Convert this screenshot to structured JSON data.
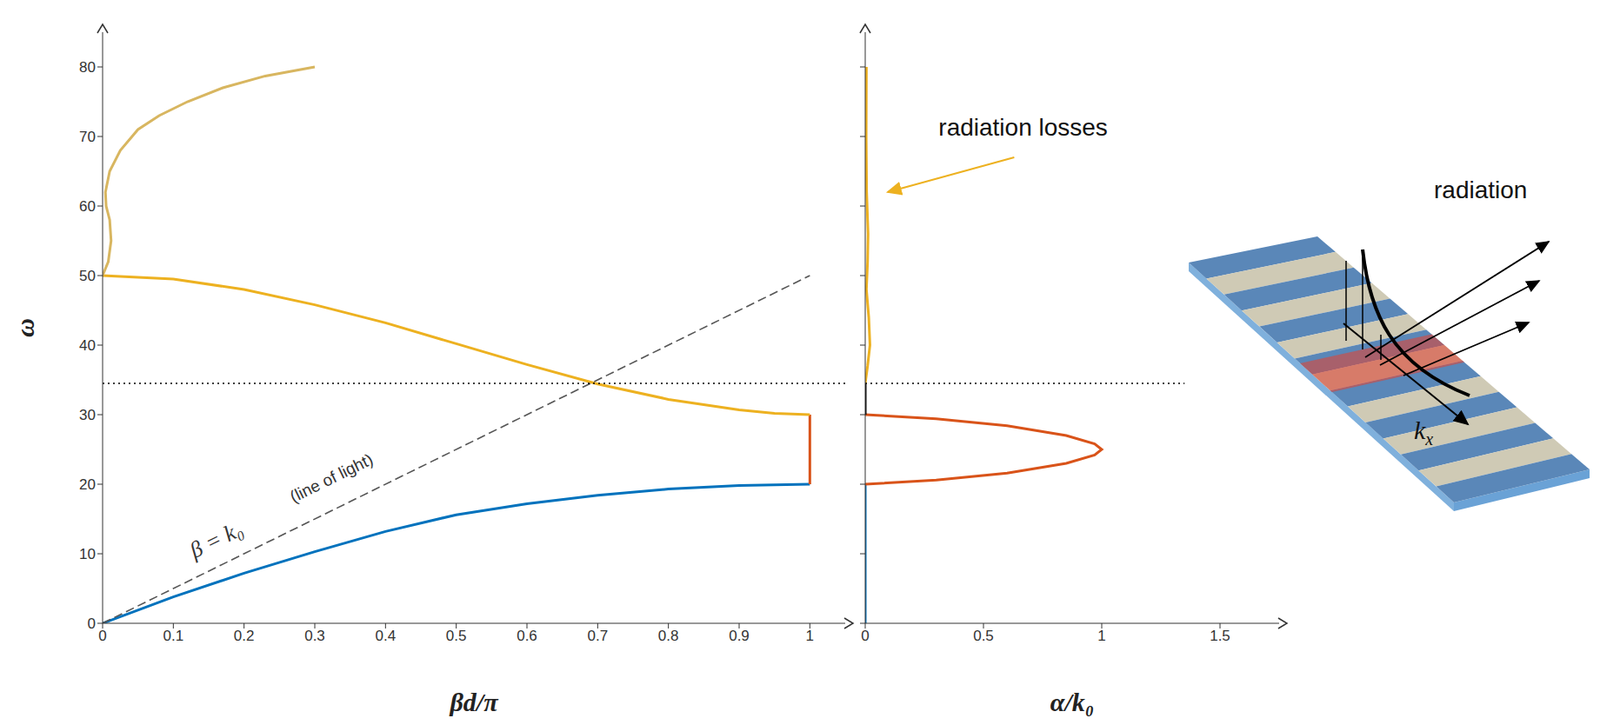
{
  "chart_data": [
    {
      "type": "line",
      "x_label": "βd/π",
      "y_label": "ω",
      "xlim": [
        0,
        1.05
      ],
      "xticks": [
        0,
        0.1,
        0.2,
        0.3,
        0.4,
        0.5,
        0.6,
        0.7,
        0.8,
        0.9,
        1
      ],
      "ylim": [
        0,
        85
      ],
      "yticks": [
        0,
        10,
        20,
        30,
        40,
        50,
        60,
        70,
        80
      ],
      "series": [
        {
          "color": "#0072bd",
          "x": [
            0,
            0.1,
            0.2,
            0.3,
            0.4,
            0.5,
            0.6,
            0.7,
            0.8,
            0.9,
            1
          ],
          "values": [
            0,
            3.8,
            7.2,
            10.3,
            13.2,
            15.6,
            17.2,
            18.4,
            19.3,
            19.8,
            20
          ]
        },
        {
          "color": "#d95319",
          "x": [
            1,
            1
          ],
          "values": [
            20,
            30
          ]
        },
        {
          "color": "#edb120",
          "x": [
            1,
            0.95,
            0.9,
            0.8,
            0.7,
            0.6,
            0.5,
            0.4,
            0.3,
            0.2,
            0.1,
            0
          ],
          "values": [
            30,
            30.2,
            30.7,
            32.2,
            34.4,
            37.2,
            40.2,
            43.2,
            45.8,
            48,
            49.5,
            50
          ]
        },
        {
          "color": "#d8b660",
          "x": [
            0,
            0.008,
            0.012,
            0.01,
            0.005,
            0.004,
            0.01,
            0.025,
            0.05,
            0.08,
            0.12,
            0.17,
            0.23,
            0.3
          ],
          "values": [
            50,
            52,
            55,
            58,
            60,
            62,
            65,
            68,
            71,
            73,
            75,
            77,
            78.7,
            80
          ]
        },
        {
          "color": "#555555",
          "line_style": "dashed",
          "x": [
            0,
            1
          ],
          "values": [
            0,
            50
          ]
        },
        {
          "color": "#000000",
          "line_style": "dotted",
          "x": [
            0,
            1.05
          ],
          "values": [
            34.5,
            34.5
          ]
        }
      ],
      "annotations": [
        {
          "text": "β = k₀",
          "x": 0.13,
          "y": 9.3
        },
        {
          "text": "(line of light)",
          "x": 0.27,
          "y": 17.3
        }
      ]
    },
    {
      "type": "line",
      "x_label": "α/k₀",
      "xlim": [
        0,
        1.75
      ],
      "xticks": [
        0,
        0.5,
        1,
        1.5
      ],
      "ylim": [
        0,
        85
      ],
      "yticks": [
        0,
        10,
        20,
        30,
        40,
        50,
        60,
        70,
        80
      ],
      "tick_labels": "x",
      "series": [
        {
          "color": "#0072bd",
          "x": [
            0,
            0
          ],
          "values": [
            0,
            20
          ]
        },
        {
          "color": "#d95319",
          "x": [
            0,
            0.3,
            0.6,
            0.85,
            0.97,
            1,
            0.97,
            0.85,
            0.6,
            0.3,
            0
          ],
          "values": [
            20,
            20.6,
            21.6,
            23,
            24.2,
            25,
            25.8,
            27,
            28.4,
            29.4,
            30
          ]
        },
        {
          "color": "#000000",
          "x": [
            0,
            0
          ],
          "values": [
            30,
            34.5
          ]
        },
        {
          "color": "#edb120",
          "x": [
            0,
            0.01,
            0.02,
            0.015,
            0.005,
            0.01,
            0.012,
            0.006,
            0.004,
            0.005
          ],
          "values": [
            34.5,
            37,
            40,
            44,
            48,
            52,
            56,
            62,
            70,
            80
          ]
        },
        {
          "color": "#000000",
          "line_style": "dotted",
          "x": [
            0,
            1.35
          ],
          "values": [
            34.5,
            34.5
          ]
        }
      ],
      "annotations": [
        {
          "text": "radiation losses",
          "x": 0.31,
          "y": 71,
          "arrow_x": 0.63,
          "arrow_y": 67,
          "arrow_to_x": 0.095,
          "arrow_to_y": 62
        }
      ]
    }
  ],
  "illustration": {
    "label": "radiation",
    "axis_symbol": "k",
    "axis_subscript": "x"
  }
}
